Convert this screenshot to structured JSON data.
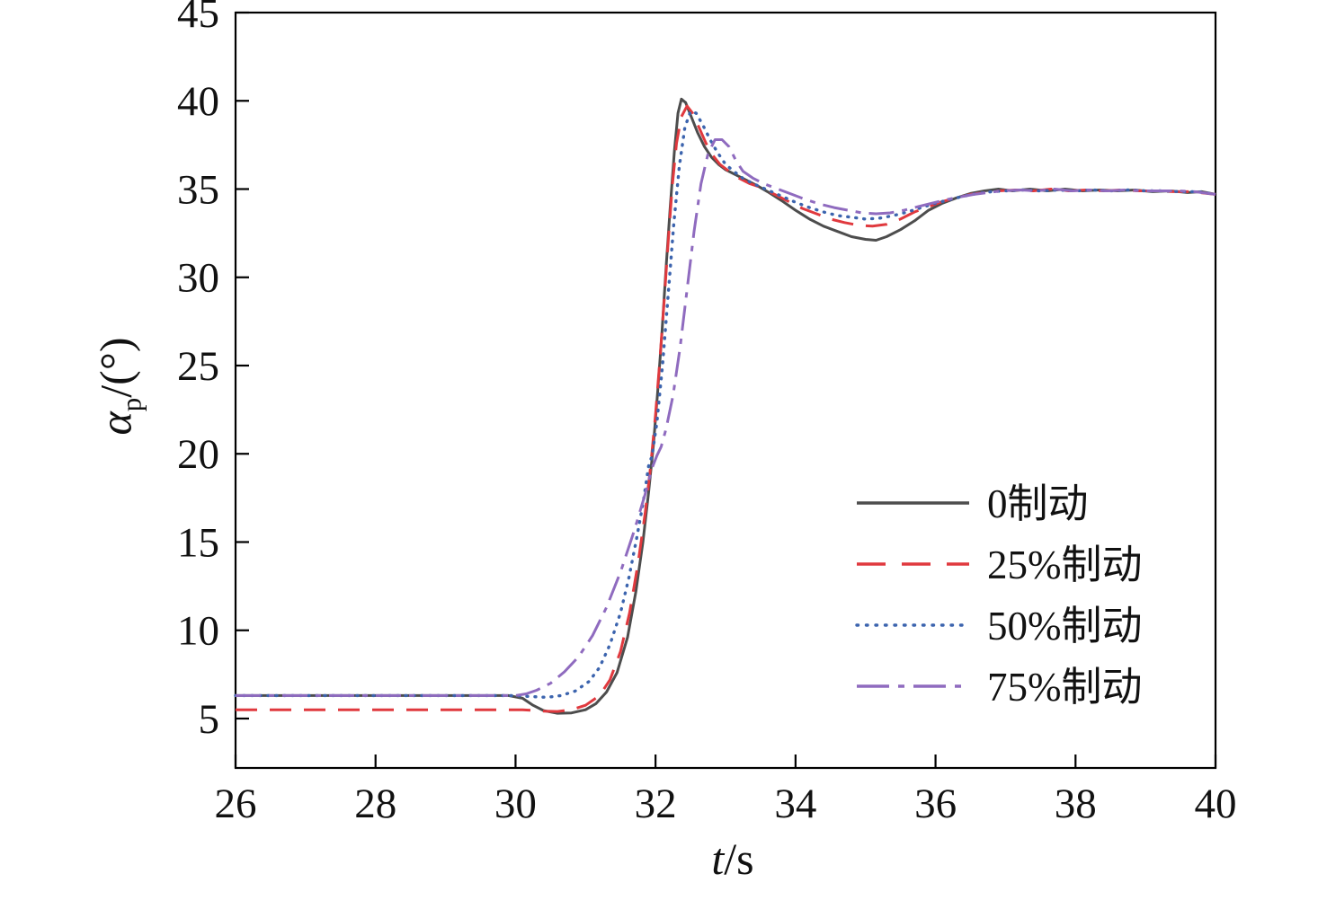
{
  "figure": {
    "background": "#ffffff",
    "axis_color": "#000000"
  },
  "chart_data": {
    "type": "line",
    "title": "",
    "xlabel_var": "t",
    "xlabel_unit": "/s",
    "ylabel_var": "α",
    "ylabel_sub": "p",
    "ylabel_unit": "/(°)",
    "xlim": [
      26,
      40
    ],
    "ylim": [
      2.2,
      45
    ],
    "xticks": [
      26,
      28,
      30,
      32,
      34,
      36,
      38,
      40
    ],
    "yticks": [
      5,
      10,
      15,
      20,
      25,
      30,
      35,
      40,
      45
    ],
    "grid": false,
    "legend_position": "inside lower right",
    "axis_color": "#000000",
    "series": [
      {
        "name": "0制动",
        "color": "#4d4d4d",
        "dash": "solid",
        "points": [
          [
            26,
            6.3
          ],
          [
            27.5,
            6.3
          ],
          [
            29,
            6.3
          ],
          [
            29.9,
            6.3
          ],
          [
            30.1,
            6.15
          ],
          [
            30.25,
            5.75
          ],
          [
            30.4,
            5.45
          ],
          [
            30.6,
            5.3
          ],
          [
            30.8,
            5.32
          ],
          [
            31.0,
            5.5
          ],
          [
            31.15,
            5.85
          ],
          [
            31.3,
            6.5
          ],
          [
            31.45,
            7.6
          ],
          [
            31.6,
            9.6
          ],
          [
            31.72,
            12.2
          ],
          [
            31.82,
            15.0
          ],
          [
            31.9,
            17.8
          ],
          [
            31.97,
            20.5
          ],
          [
            32.03,
            23.5
          ],
          [
            32.09,
            26.8
          ],
          [
            32.15,
            30.5
          ],
          [
            32.21,
            34.0
          ],
          [
            32.27,
            37.2
          ],
          [
            32.32,
            39.3
          ],
          [
            32.37,
            40.1
          ],
          [
            32.43,
            39.9
          ],
          [
            32.5,
            39.2
          ],
          [
            32.6,
            38.2
          ],
          [
            32.7,
            37.4
          ],
          [
            32.8,
            36.8
          ],
          [
            32.9,
            36.4
          ],
          [
            33.0,
            36.1
          ],
          [
            33.15,
            35.8
          ],
          [
            33.3,
            35.5
          ],
          [
            33.45,
            35.2
          ],
          [
            33.6,
            34.85
          ],
          [
            33.8,
            34.35
          ],
          [
            34.0,
            33.8
          ],
          [
            34.2,
            33.3
          ],
          [
            34.4,
            32.9
          ],
          [
            34.6,
            32.6
          ],
          [
            34.8,
            32.3
          ],
          [
            35.0,
            32.15
          ],
          [
            35.15,
            32.1
          ],
          [
            35.3,
            32.3
          ],
          [
            35.5,
            32.7
          ],
          [
            35.7,
            33.2
          ],
          [
            35.9,
            33.8
          ],
          [
            36.1,
            34.2
          ],
          [
            36.3,
            34.5
          ],
          [
            36.5,
            34.75
          ],
          [
            36.7,
            34.9
          ],
          [
            36.9,
            35.0
          ],
          [
            37.1,
            34.9
          ],
          [
            37.35,
            35.0
          ],
          [
            37.6,
            34.9
          ],
          [
            37.85,
            35.0
          ],
          [
            38.1,
            34.9
          ],
          [
            38.35,
            34.95
          ],
          [
            38.6,
            34.9
          ],
          [
            38.85,
            34.95
          ],
          [
            39.1,
            34.85
          ],
          [
            39.35,
            34.9
          ],
          [
            39.6,
            34.8
          ],
          [
            39.8,
            34.85
          ],
          [
            40,
            34.7
          ]
        ]
      },
      {
        "name": "25%制动",
        "color": "#e0393e",
        "dash": "dashed",
        "points": [
          [
            26,
            5.5
          ],
          [
            27.5,
            5.5
          ],
          [
            29,
            5.5
          ],
          [
            30.1,
            5.5
          ],
          [
            30.4,
            5.42
          ],
          [
            30.6,
            5.4
          ],
          [
            30.8,
            5.5
          ],
          [
            31.0,
            5.75
          ],
          [
            31.2,
            6.3
          ],
          [
            31.35,
            7.2
          ],
          [
            31.5,
            8.8
          ],
          [
            31.63,
            11.0
          ],
          [
            31.75,
            13.8
          ],
          [
            31.85,
            16.6
          ],
          [
            31.93,
            19.3
          ],
          [
            32.0,
            22.2
          ],
          [
            32.06,
            25.2
          ],
          [
            32.12,
            28.5
          ],
          [
            32.18,
            32.0
          ],
          [
            32.24,
            35.2
          ],
          [
            32.3,
            37.6
          ],
          [
            32.37,
            39.1
          ],
          [
            32.45,
            39.7
          ],
          [
            32.53,
            39.3
          ],
          [
            32.62,
            38.5
          ],
          [
            32.72,
            37.6
          ],
          [
            32.82,
            36.9
          ],
          [
            32.92,
            36.4
          ],
          [
            33.05,
            36.0
          ],
          [
            33.2,
            35.6
          ],
          [
            33.35,
            35.3
          ],
          [
            33.5,
            35.1
          ],
          [
            33.7,
            34.7
          ],
          [
            33.9,
            34.3
          ],
          [
            34.1,
            33.9
          ],
          [
            34.3,
            33.6
          ],
          [
            34.5,
            33.3
          ],
          [
            34.7,
            33.1
          ],
          [
            34.9,
            32.95
          ],
          [
            35.1,
            32.9
          ],
          [
            35.3,
            33.0
          ],
          [
            35.5,
            33.3
          ],
          [
            35.7,
            33.7
          ],
          [
            35.9,
            34.0
          ],
          [
            36.1,
            34.3
          ],
          [
            36.3,
            34.5
          ],
          [
            36.5,
            34.7
          ],
          [
            36.7,
            34.8
          ],
          [
            36.9,
            34.9
          ],
          [
            37.15,
            34.95
          ],
          [
            37.4,
            34.9
          ],
          [
            37.65,
            35.0
          ],
          [
            37.9,
            34.9
          ],
          [
            38.15,
            34.95
          ],
          [
            38.4,
            34.9
          ],
          [
            38.65,
            34.95
          ],
          [
            38.9,
            34.9
          ],
          [
            39.15,
            34.9
          ],
          [
            39.4,
            34.85
          ],
          [
            39.65,
            34.85
          ],
          [
            40,
            34.7
          ]
        ]
      },
      {
        "name": "50%制动",
        "color": "#3c64ae",
        "dash": "dotted",
        "points": [
          [
            26,
            6.3
          ],
          [
            27.5,
            6.3
          ],
          [
            29,
            6.3
          ],
          [
            30.0,
            6.3
          ],
          [
            30.2,
            6.25
          ],
          [
            30.45,
            6.2
          ],
          [
            30.65,
            6.3
          ],
          [
            30.85,
            6.55
          ],
          [
            31.05,
            7.1
          ],
          [
            31.2,
            7.9
          ],
          [
            31.35,
            9.2
          ],
          [
            31.5,
            11.0
          ],
          [
            31.62,
            13.0
          ],
          [
            31.73,
            15.2
          ],
          [
            31.83,
            17.4
          ],
          [
            31.9,
            19.3
          ],
          [
            31.95,
            19.9
          ],
          [
            32.02,
            21.8
          ],
          [
            32.1,
            25.0
          ],
          [
            32.18,
            29.0
          ],
          [
            32.26,
            33.0
          ],
          [
            32.34,
            36.3
          ],
          [
            32.42,
            38.5
          ],
          [
            32.5,
            39.4
          ],
          [
            32.58,
            39.3
          ],
          [
            32.68,
            38.6
          ],
          [
            32.78,
            37.8
          ],
          [
            32.88,
            37.1
          ],
          [
            33.0,
            36.4
          ],
          [
            33.12,
            36.0
          ],
          [
            33.25,
            35.6
          ],
          [
            33.4,
            35.3
          ],
          [
            33.6,
            34.95
          ],
          [
            33.8,
            34.6
          ],
          [
            34.0,
            34.25
          ],
          [
            34.2,
            33.95
          ],
          [
            34.4,
            33.7
          ],
          [
            34.6,
            33.5
          ],
          [
            34.8,
            33.4
          ],
          [
            35.0,
            33.3
          ],
          [
            35.2,
            33.35
          ],
          [
            35.4,
            33.5
          ],
          [
            35.6,
            33.7
          ],
          [
            35.8,
            33.95
          ],
          [
            36.0,
            34.2
          ],
          [
            36.2,
            34.4
          ],
          [
            36.4,
            34.6
          ],
          [
            36.6,
            34.75
          ],
          [
            36.8,
            34.85
          ],
          [
            37.0,
            34.9
          ],
          [
            37.25,
            34.95
          ],
          [
            37.5,
            34.9
          ],
          [
            37.75,
            34.95
          ],
          [
            38.0,
            34.9
          ],
          [
            38.25,
            34.95
          ],
          [
            38.5,
            34.9
          ],
          [
            38.75,
            34.95
          ],
          [
            39.0,
            34.9
          ],
          [
            39.25,
            34.9
          ],
          [
            39.5,
            34.85
          ],
          [
            39.75,
            34.85
          ],
          [
            40,
            34.7
          ]
        ]
      },
      {
        "name": "75%制动",
        "color": "#8f6bbf",
        "dash": "dashdot",
        "points": [
          [
            26,
            6.3
          ],
          [
            27.5,
            6.3
          ],
          [
            29,
            6.3
          ],
          [
            30.0,
            6.3
          ],
          [
            30.15,
            6.4
          ],
          [
            30.3,
            6.6
          ],
          [
            30.5,
            7.0
          ],
          [
            30.7,
            7.65
          ],
          [
            30.9,
            8.5
          ],
          [
            31.1,
            9.7
          ],
          [
            31.3,
            11.3
          ],
          [
            31.5,
            13.3
          ],
          [
            31.7,
            15.7
          ],
          [
            31.85,
            17.7
          ],
          [
            31.95,
            19.2
          ],
          [
            32.02,
            19.9
          ],
          [
            32.08,
            20.4
          ],
          [
            32.15,
            21.4
          ],
          [
            32.25,
            23.3
          ],
          [
            32.35,
            26.0
          ],
          [
            32.45,
            29.3
          ],
          [
            32.55,
            32.6
          ],
          [
            32.65,
            35.3
          ],
          [
            32.75,
            37.0
          ],
          [
            32.85,
            37.8
          ],
          [
            32.95,
            37.8
          ],
          [
            33.05,
            37.4
          ],
          [
            33.15,
            36.6
          ],
          [
            33.25,
            36.0
          ],
          [
            33.4,
            35.6
          ],
          [
            33.55,
            35.3
          ],
          [
            33.75,
            35.0
          ],
          [
            33.95,
            34.7
          ],
          [
            34.15,
            34.4
          ],
          [
            34.35,
            34.15
          ],
          [
            34.55,
            33.95
          ],
          [
            34.75,
            33.8
          ],
          [
            34.95,
            33.65
          ],
          [
            35.15,
            33.6
          ],
          [
            35.35,
            33.65
          ],
          [
            35.55,
            33.8
          ],
          [
            35.75,
            34.0
          ],
          [
            35.95,
            34.2
          ],
          [
            36.15,
            34.4
          ],
          [
            36.35,
            34.55
          ],
          [
            36.55,
            34.7
          ],
          [
            36.75,
            34.8
          ],
          [
            36.95,
            34.9
          ],
          [
            37.2,
            34.95
          ],
          [
            37.45,
            34.9
          ],
          [
            37.7,
            35.0
          ],
          [
            37.95,
            34.9
          ],
          [
            38.2,
            34.95
          ],
          [
            38.45,
            34.9
          ],
          [
            38.7,
            34.95
          ],
          [
            38.95,
            34.9
          ],
          [
            39.2,
            34.9
          ],
          [
            39.45,
            34.9
          ],
          [
            39.7,
            34.85
          ],
          [
            40,
            34.7
          ]
        ]
      }
    ]
  }
}
